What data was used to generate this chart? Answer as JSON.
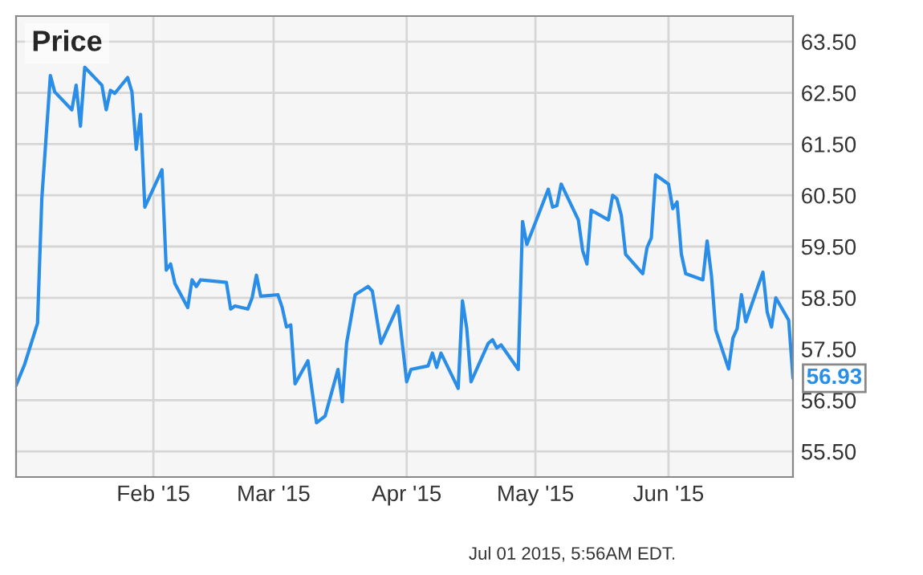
{
  "chart_data": {
    "type": "line",
    "title": "Price",
    "x": [
      "2014-12-31",
      "2015-01-02",
      "2015-01-05",
      "2015-01-06",
      "2015-01-08",
      "2015-01-09",
      "2015-01-13",
      "2015-01-14",
      "2015-01-15",
      "2015-01-16",
      "2015-01-20",
      "2015-01-21",
      "2015-01-22",
      "2015-01-23",
      "2015-01-26",
      "2015-01-27",
      "2015-01-28",
      "2015-01-29",
      "2015-01-30",
      "2015-02-03",
      "2015-02-04",
      "2015-02-05",
      "2015-02-06",
      "2015-02-09",
      "2015-02-10",
      "2015-02-11",
      "2015-02-12",
      "2015-02-18",
      "2015-02-19",
      "2015-02-20",
      "2015-02-23",
      "2015-02-24",
      "2015-02-25",
      "2015-02-26",
      "2015-03-02",
      "2015-03-03",
      "2015-03-04",
      "2015-03-05",
      "2015-03-06",
      "2015-03-09",
      "2015-03-11",
      "2015-03-13",
      "2015-03-16",
      "2015-03-17",
      "2015-03-18",
      "2015-03-20",
      "2015-03-23",
      "2015-03-24",
      "2015-03-26",
      "2015-03-30",
      "2015-04-01",
      "2015-04-02",
      "2015-04-06",
      "2015-04-07",
      "2015-04-08",
      "2015-04-09",
      "2015-04-13",
      "2015-04-14",
      "2015-04-15",
      "2015-04-16",
      "2015-04-20",
      "2015-04-21",
      "2015-04-22",
      "2015-04-23",
      "2015-04-27",
      "2015-04-28",
      "2015-04-29",
      "2015-05-04",
      "2015-05-05",
      "2015-05-06",
      "2015-05-07",
      "2015-05-11",
      "2015-05-12",
      "2015-05-13",
      "2015-05-14",
      "2015-05-18",
      "2015-05-19",
      "2015-05-20",
      "2015-05-21",
      "2015-05-22",
      "2015-05-26",
      "2015-05-27",
      "2015-05-28",
      "2015-05-29",
      "2015-06-01",
      "2015-06-02",
      "2015-06-03",
      "2015-06-04",
      "2015-06-05",
      "2015-06-09",
      "2015-06-10",
      "2015-06-11",
      "2015-06-12",
      "2015-06-15",
      "2015-06-16",
      "2015-06-17",
      "2015-06-18",
      "2015-06-19",
      "2015-06-23",
      "2015-06-24",
      "2015-06-25",
      "2015-06-26",
      "2015-06-29",
      "2015-06-30"
    ],
    "series": [
      {
        "color": "#2a8ee8",
        "values": [
          56.79,
          57.2,
          58.0,
          60.43,
          62.84,
          62.52,
          62.17,
          62.65,
          61.85,
          63.0,
          62.65,
          62.17,
          62.55,
          62.49,
          62.8,
          62.52,
          61.4,
          62.08,
          60.27,
          61.0,
          59.04,
          59.16,
          58.78,
          58.31,
          58.85,
          58.72,
          58.85,
          58.8,
          58.28,
          58.34,
          58.28,
          58.5,
          58.94,
          58.53,
          58.56,
          58.31,
          57.93,
          57.97,
          56.82,
          57.27,
          56.06,
          56.19,
          57.1,
          56.47,
          57.61,
          58.56,
          58.72,
          58.63,
          57.61,
          58.34,
          56.86,
          57.1,
          57.17,
          57.42,
          57.14,
          57.42,
          56.73,
          58.44,
          57.9,
          56.86,
          57.61,
          57.68,
          57.52,
          57.58,
          57.1,
          59.99,
          59.54,
          60.62,
          60.27,
          60.3,
          60.72,
          60.02,
          59.42,
          59.16,
          60.21,
          60.02,
          60.5,
          60.43,
          60.11,
          59.35,
          58.97,
          59.48,
          59.67,
          60.9,
          60.72,
          60.24,
          60.37,
          59.35,
          58.97,
          58.85,
          59.61,
          58.94,
          57.87,
          57.11,
          57.71,
          57.9,
          58.56,
          58.03,
          59.0,
          58.22,
          57.93,
          58.5,
          58.06,
          56.93
        ]
      }
    ],
    "xlim": [
      "2014-12-31",
      "2015-06-30"
    ],
    "xticks": [
      {
        "value": "2015-02-01",
        "label": "Feb '15"
      },
      {
        "value": "2015-03-01",
        "label": "Mar '15"
      },
      {
        "value": "2015-04-01",
        "label": "Apr '15"
      },
      {
        "value": "2015-05-01",
        "label": "May '15"
      },
      {
        "value": "2015-06-01",
        "label": "Jun '15"
      }
    ],
    "ylim": [
      55.0,
      64.0
    ],
    "yticks": [
      {
        "value": 55.5,
        "label": "55.50"
      },
      {
        "value": 56.5,
        "label": "56.50"
      },
      {
        "value": 57.5,
        "label": "57.50"
      },
      {
        "value": 58.5,
        "label": "58.50"
      },
      {
        "value": 59.5,
        "label": "59.50"
      },
      {
        "value": 60.5,
        "label": "60.50"
      },
      {
        "value": 61.5,
        "label": "61.50"
      },
      {
        "value": 62.5,
        "label": "62.50"
      },
      {
        "value": 63.5,
        "label": "63.50"
      }
    ],
    "grid": true,
    "legend": false,
    "annotations": [
      {
        "text": "56.93",
        "x": "2015-06-30",
        "y": 56.93
      },
      "Jul 01 2015, 5:56AM EDT."
    ]
  }
}
